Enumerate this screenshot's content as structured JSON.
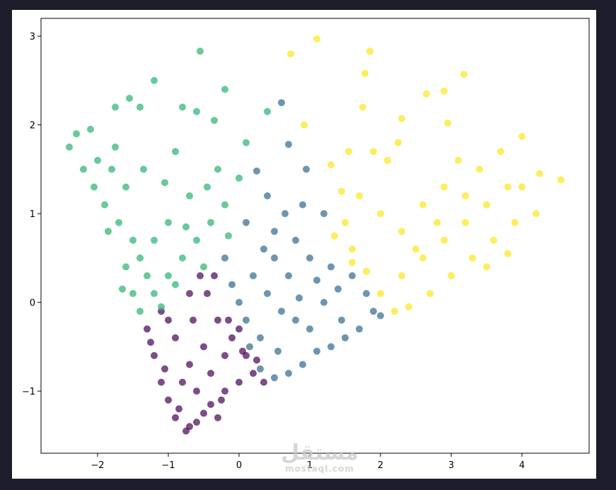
{
  "chart_data": {
    "type": "scatter",
    "title": "",
    "xlabel": "",
    "ylabel": "",
    "xlim": [
      -2.8,
      4.95
    ],
    "ylim": [
      -1.7,
      3.2
    ],
    "xticks": [
      -2,
      -1,
      0,
      1,
      2,
      3,
      4
    ],
    "yticks": [
      -1,
      0,
      1,
      2,
      3
    ],
    "xtick_labels": [
      "−2",
      "−1",
      "0",
      "1",
      "2",
      "3",
      "4"
    ],
    "ytick_labels": [
      "−1",
      "0",
      "1",
      "2",
      "3"
    ],
    "grid": false,
    "legend": "none",
    "series": [
      {
        "color": "#440154",
        "opacity": 0.7,
        "points": [
          [
            -0.55,
            0.3
          ],
          [
            -0.7,
            0.1
          ],
          [
            -1.1,
            -0.1
          ],
          [
            -1.3,
            -0.3
          ],
          [
            -1.2,
            -0.6
          ],
          [
            -1.1,
            -0.9
          ],
          [
            -1.0,
            -1.1
          ],
          [
            -0.9,
            -1.3
          ],
          [
            -0.75,
            -1.45
          ],
          [
            -0.6,
            -1.35
          ],
          [
            -0.4,
            -1.15
          ],
          [
            -0.2,
            -1.0
          ],
          [
            0.0,
            -0.9
          ],
          [
            0.2,
            -0.8
          ],
          [
            0.35,
            -0.9
          ],
          [
            0.1,
            -0.6
          ],
          [
            -0.1,
            -0.4
          ],
          [
            -0.3,
            -0.2
          ],
          [
            -0.5,
            -0.5
          ],
          [
            -0.7,
            -0.7
          ],
          [
            -0.8,
            -0.9
          ],
          [
            -0.6,
            -1.0
          ],
          [
            -0.4,
            -0.8
          ],
          [
            -0.2,
            -0.6
          ],
          [
            0.0,
            -0.3
          ],
          [
            -0.9,
            -0.4
          ],
          [
            -1.0,
            -0.2
          ],
          [
            -0.85,
            -1.2
          ],
          [
            -0.5,
            -1.25
          ],
          [
            -0.3,
            -1.3
          ],
          [
            -0.35,
            0.3
          ],
          [
            -0.45,
            0.1
          ],
          [
            -0.15,
            -0.2
          ],
          [
            0.05,
            -0.55
          ],
          [
            0.25,
            -0.65
          ],
          [
            -1.25,
            -0.45
          ],
          [
            -1.05,
            -0.75
          ],
          [
            -0.65,
            -0.2
          ],
          [
            -0.25,
            -1.1
          ],
          [
            -0.7,
            -1.4
          ]
        ]
      },
      {
        "color": "#31688e",
        "opacity": 0.7,
        "points": [
          [
            0.6,
            2.25
          ],
          [
            0.7,
            1.78
          ],
          [
            0.25,
            1.48
          ],
          [
            0.95,
            1.5
          ],
          [
            0.4,
            1.2
          ],
          [
            0.9,
            1.1
          ],
          [
            1.2,
            1.0
          ],
          [
            0.1,
            0.9
          ],
          [
            0.5,
            0.8
          ],
          [
            0.8,
            0.7
          ],
          [
            1.0,
            0.5
          ],
          [
            1.3,
            0.4
          ],
          [
            1.6,
            0.3
          ],
          [
            1.8,
            0.1
          ],
          [
            1.9,
            -0.1
          ],
          [
            2.0,
            -0.15
          ],
          [
            1.7,
            -0.3
          ],
          [
            1.5,
            -0.4
          ],
          [
            1.3,
            -0.5
          ],
          [
            1.1,
            -0.55
          ],
          [
            0.9,
            -0.7
          ],
          [
            0.7,
            -0.8
          ],
          [
            0.5,
            -0.85
          ],
          [
            0.3,
            -0.75
          ],
          [
            0.15,
            -0.5
          ],
          [
            0.1,
            -0.2
          ],
          [
            0.0,
            0.0
          ],
          [
            -0.1,
            0.2
          ],
          [
            -0.2,
            0.5
          ],
          [
            0.2,
            0.3
          ],
          [
            0.4,
            0.1
          ],
          [
            0.6,
            -0.1
          ],
          [
            0.8,
            -0.2
          ],
          [
            1.0,
            -0.3
          ],
          [
            1.2,
            0.0
          ],
          [
            1.4,
            0.15
          ],
          [
            0.5,
            0.5
          ],
          [
            0.7,
            0.3
          ],
          [
            0.3,
            -0.4
          ],
          [
            0.55,
            -0.55
          ],
          [
            1.1,
            0.25
          ],
          [
            1.45,
            -0.2
          ],
          [
            0.85,
            0.05
          ],
          [
            0.35,
            0.6
          ],
          [
            0.65,
            1.0
          ]
        ]
      },
      {
        "color": "#35b779",
        "opacity": 0.75,
        "points": [
          [
            -0.55,
            2.83
          ],
          [
            -1.2,
            2.5
          ],
          [
            -0.2,
            2.4
          ],
          [
            -1.55,
            2.3
          ],
          [
            -1.4,
            2.2
          ],
          [
            -0.8,
            2.2
          ],
          [
            -0.35,
            2.05
          ],
          [
            -0.6,
            2.15
          ],
          [
            0.4,
            2.15
          ],
          [
            -1.75,
            2.2
          ],
          [
            -2.3,
            1.9
          ],
          [
            -2.4,
            1.75
          ],
          [
            -2.1,
            1.95
          ],
          [
            -2.0,
            1.6
          ],
          [
            -1.8,
            1.5
          ],
          [
            -1.6,
            1.3
          ],
          [
            -1.9,
            1.1
          ],
          [
            -1.7,
            0.9
          ],
          [
            -1.5,
            0.7
          ],
          [
            -1.4,
            0.5
          ],
          [
            -1.3,
            0.3
          ],
          [
            -1.2,
            0.1
          ],
          [
            -1.4,
            -0.1
          ],
          [
            -1.5,
            0.1
          ],
          [
            -1.6,
            0.4
          ],
          [
            -1.0,
            0.3
          ],
          [
            -0.8,
            0.5
          ],
          [
            -0.6,
            0.7
          ],
          [
            -0.4,
            0.9
          ],
          [
            -0.2,
            1.1
          ],
          [
            0.0,
            1.4
          ],
          [
            0.1,
            1.8
          ],
          [
            -0.3,
            1.5
          ],
          [
            -0.7,
            1.2
          ],
          [
            -1.0,
            0.9
          ],
          [
            -1.2,
            0.7
          ],
          [
            -0.5,
            0.4
          ],
          [
            -0.9,
            0.2
          ],
          [
            -1.1,
            -0.05
          ],
          [
            -2.2,
            1.5
          ],
          [
            -2.05,
            1.3
          ],
          [
            -1.85,
            0.8
          ],
          [
            -1.65,
            0.15
          ],
          [
            -1.35,
            1.5
          ],
          [
            -0.9,
            1.7
          ],
          [
            -0.45,
            1.3
          ],
          [
            -0.15,
            0.75
          ],
          [
            -0.75,
            0.85
          ],
          [
            -1.05,
            1.35
          ],
          [
            -1.75,
            1.75
          ]
        ]
      },
      {
        "color": "#fde725",
        "opacity": 0.75,
        "points": [
          [
            1.1,
            2.97
          ],
          [
            0.73,
            2.8
          ],
          [
            1.85,
            2.83
          ],
          [
            1.78,
            2.58
          ],
          [
            2.9,
            2.38
          ],
          [
            3.18,
            2.57
          ],
          [
            2.65,
            2.35
          ],
          [
            1.75,
            2.2
          ],
          [
            2.3,
            2.07
          ],
          [
            2.95,
            2.02
          ],
          [
            0.92,
            2.0
          ],
          [
            4.0,
            1.87
          ],
          [
            4.55,
            1.38
          ],
          [
            4.25,
            1.45
          ],
          [
            3.8,
            1.3
          ],
          [
            3.5,
            1.1
          ],
          [
            3.2,
            0.9
          ],
          [
            2.9,
            0.7
          ],
          [
            2.6,
            0.5
          ],
          [
            2.3,
            0.3
          ],
          [
            2.0,
            0.1
          ],
          [
            1.8,
            0.35
          ],
          [
            1.6,
            0.6
          ],
          [
            1.5,
            0.9
          ],
          [
            1.7,
            1.2
          ],
          [
            2.0,
            1.0
          ],
          [
            2.3,
            0.8
          ],
          [
            2.6,
            1.1
          ],
          [
            2.9,
            1.3
          ],
          [
            3.1,
            1.6
          ],
          [
            3.4,
            1.5
          ],
          [
            3.7,
            1.7
          ],
          [
            4.0,
            1.3
          ],
          [
            4.2,
            1.0
          ],
          [
            3.9,
            0.9
          ],
          [
            3.6,
            0.7
          ],
          [
            3.3,
            0.5
          ],
          [
            3.0,
            0.3
          ],
          [
            2.7,
            0.1
          ],
          [
            2.4,
            -0.05
          ],
          [
            2.2,
            -0.1
          ],
          [
            2.5,
            0.6
          ],
          [
            2.8,
            0.9
          ],
          [
            3.2,
            1.2
          ],
          [
            3.5,
            0.4
          ],
          [
            3.8,
            0.55
          ],
          [
            2.1,
            1.6
          ],
          [
            1.9,
            1.7
          ],
          [
            2.25,
            1.8
          ],
          [
            1.55,
            1.7
          ],
          [
            1.3,
            1.55
          ],
          [
            1.45,
            1.25
          ],
          [
            1.35,
            0.75
          ],
          [
            1.6,
            0.45
          ]
        ]
      }
    ]
  },
  "watermark": {
    "arabic": "مستقل",
    "latin": "mostaql.com"
  }
}
